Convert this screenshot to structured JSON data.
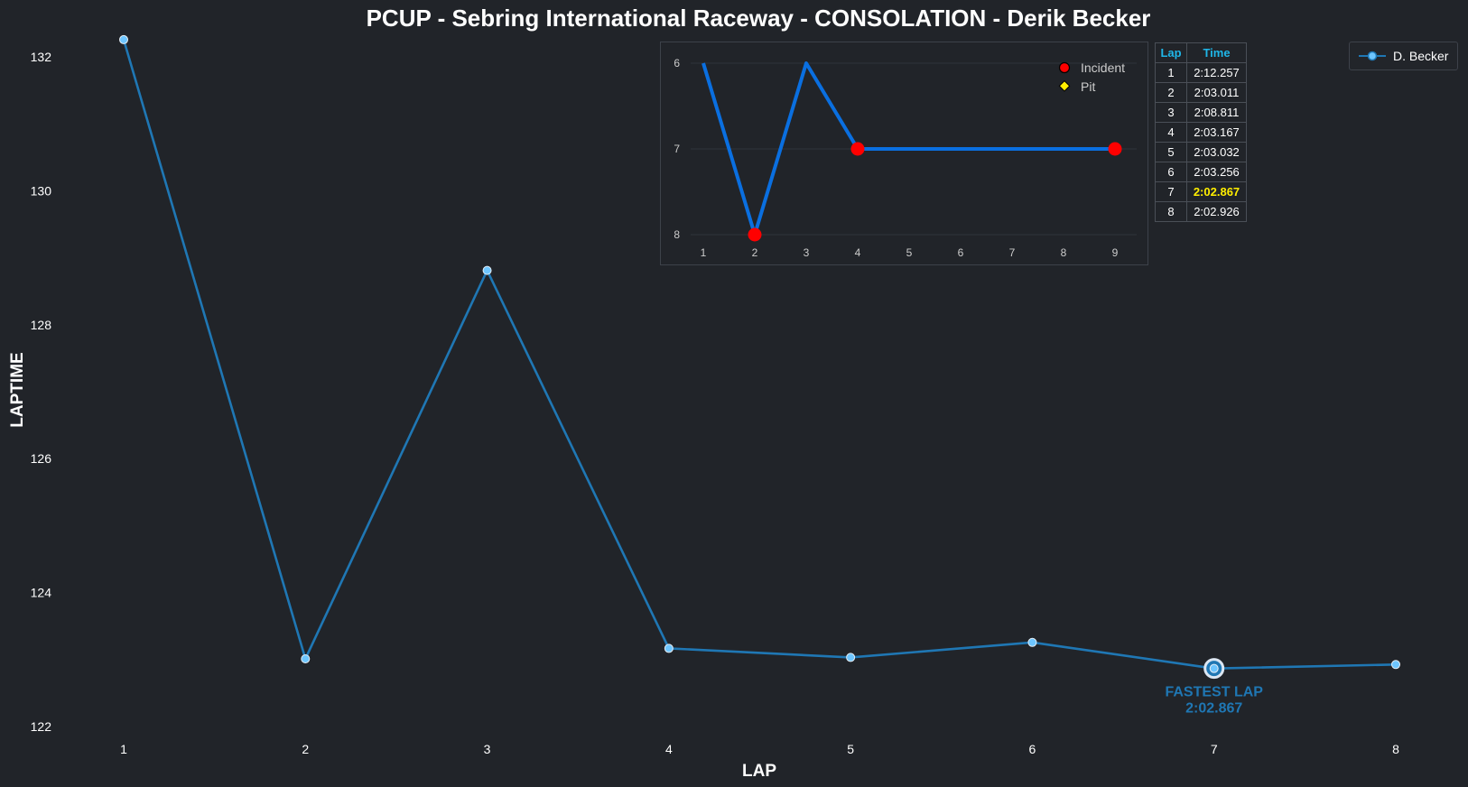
{
  "chart_data": [
    {
      "type": "line",
      "title": "PCUP - Sebring International Raceway - CONSOLATION - Derik Becker",
      "xlabel": "LAP",
      "ylabel": "LAPTIME",
      "x": [
        1,
        2,
        3,
        4,
        5,
        6,
        7,
        8
      ],
      "series": [
        {
          "name": "D. Becker",
          "values": [
            132.257,
            123.011,
            128.811,
            123.167,
            123.032,
            123.256,
            122.867,
            122.926
          ]
        }
      ],
      "xlim": [
        1,
        8
      ],
      "ylim": [
        122,
        132
      ],
      "x_ticks": [
        "1",
        "2",
        "3",
        "4",
        "5",
        "6",
        "7",
        "8"
      ],
      "y_ticks": [
        "122",
        "124",
        "126",
        "128",
        "130",
        "132"
      ],
      "grid": false,
      "legend": "top-right",
      "annotation": {
        "x": 7,
        "y": 122.867,
        "line1": "FASTEST LAP",
        "line2": "2:02.867"
      },
      "colors": {
        "line": "#1f77b4",
        "marker_face": "#6ec6ff",
        "annotation": "#1f77b4"
      }
    },
    {
      "type": "line",
      "title": "",
      "x": [
        1,
        2,
        3,
        4,
        5,
        6,
        7,
        8,
        9
      ],
      "values": [
        6,
        8,
        6,
        7,
        7,
        7,
        7,
        7,
        7
      ],
      "y_inverted": true,
      "ylim": [
        6,
        8
      ],
      "x_ticks": [
        "1",
        "2",
        "3",
        "4",
        "5",
        "6",
        "7",
        "8",
        "9"
      ],
      "y_ticks": [
        "6",
        "7",
        "8"
      ],
      "incidents": [
        {
          "x": 2,
          "y": 8
        },
        {
          "x": 4,
          "y": 7
        },
        {
          "x": 9,
          "y": 7
        }
      ],
      "pits": [],
      "legend_entries": [
        "Incident",
        "Pit"
      ],
      "legend": "top-right",
      "colors": {
        "line": "#0a6fe0",
        "incident": "#ff0000",
        "pit": "#ffee00"
      }
    }
  ],
  "lap_table": {
    "headers": [
      "Lap",
      "Time"
    ],
    "rows": [
      {
        "lap": "1",
        "time": "2:12.257"
      },
      {
        "lap": "2",
        "time": "2:03.011"
      },
      {
        "lap": "3",
        "time": "2:08.811"
      },
      {
        "lap": "4",
        "time": "2:03.167"
      },
      {
        "lap": "5",
        "time": "2:03.032"
      },
      {
        "lap": "6",
        "time": "2:03.256"
      },
      {
        "lap": "7",
        "time": "2:02.867",
        "best": true
      },
      {
        "lap": "8",
        "time": "2:02.926"
      }
    ]
  },
  "colors": {
    "background": "#212429",
    "text": "#ffffff",
    "table_header": "#1fb6e8",
    "best_lap": "#ffee00"
  }
}
